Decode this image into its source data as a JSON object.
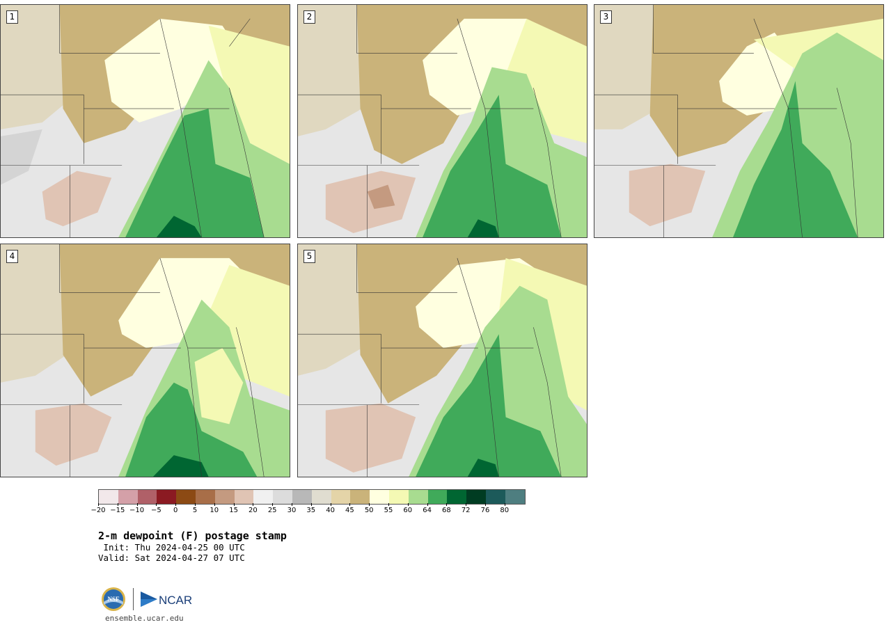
{
  "panels": [
    {
      "label": "1"
    },
    {
      "label": "2"
    },
    {
      "label": "3"
    },
    {
      "label": "4"
    },
    {
      "label": "5"
    }
  ],
  "colorbar": {
    "colors": [
      "#f2e8ea",
      "#d4a0a8",
      "#b06068",
      "#8b1a22",
      "#8c4a14",
      "#a86e48",
      "#c49a80",
      "#e0c4b4",
      "#f0f0f0",
      "#dcdcdc",
      "#b8b8b8",
      "#e0ddd0",
      "#e4d4a8",
      "#cab37a",
      "#ffffe0",
      "#f4f9b4",
      "#a8dc90",
      "#40aa5a",
      "#006632",
      "#003c22",
      "#1c5a5a",
      "#4e7e80"
    ],
    "tick_labels": [
      "−20",
      "−15",
      "−10",
      "−5",
      "0",
      "5",
      "10",
      "15",
      "20",
      "25",
      "30",
      "35",
      "40",
      "45",
      "50",
      "55",
      "60",
      "64",
      "68",
      "72",
      "76",
      "80"
    ]
  },
  "title": "2-m dewpoint (F) postage stamp",
  "init": " Init: Thu 2024-04-25 00 UTC",
  "valid": "Valid: Sat 2024-04-27 07 UTC",
  "logos": {
    "nsf": "NSF",
    "ncar": "NCAR"
  },
  "site": "ensemble.ucar.edu"
}
